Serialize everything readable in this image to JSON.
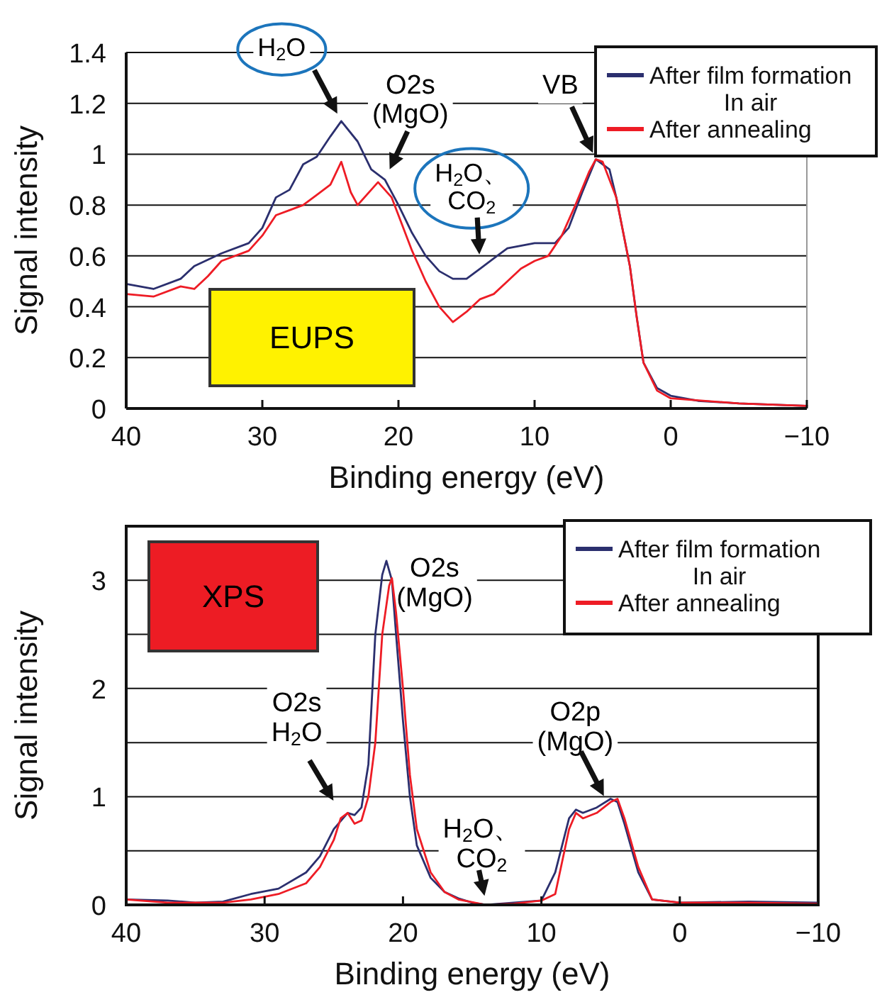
{
  "chart_data": [
    {
      "type": "line",
      "xlabel": "Binding energy (eV)",
      "ylabel": "Signal intensity",
      "xlim": [
        40,
        -10
      ],
      "ylim": [
        0,
        1.4
      ],
      "xticks": [
        40,
        30,
        20,
        10,
        0,
        {
          "value": -10,
          "label": "−10"
        }
      ],
      "yticks": [
        0,
        0.2,
        0.4,
        0.6,
        0.8,
        1,
        1.2,
        1.4
      ],
      "grid": "y",
      "legend": "top right",
      "series": [
        {
          "name": "After film formation\nIn air",
          "color": "#2b2f6e",
          "x": [
            40,
            38,
            36,
            35,
            33,
            31,
            30,
            29,
            28,
            27,
            26,
            25,
            24.2,
            23,
            22,
            21,
            20,
            19,
            18,
            17,
            16,
            15,
            14,
            13,
            12,
            10,
            8.5,
            7.5,
            6.5,
            5.5,
            4.5,
            4,
            3,
            2.5,
            2,
            1,
            0,
            -2,
            -5,
            -10
          ],
          "values": [
            0.49,
            0.47,
            0.51,
            0.56,
            0.61,
            0.65,
            0.71,
            0.83,
            0.86,
            0.96,
            0.99,
            1.07,
            1.13,
            1.05,
            0.94,
            0.9,
            0.8,
            0.69,
            0.6,
            0.54,
            0.51,
            0.51,
            0.55,
            0.59,
            0.63,
            0.65,
            0.65,
            0.71,
            0.85,
            0.98,
            0.94,
            0.83,
            0.56,
            0.36,
            0.18,
            0.08,
            0.05,
            0.03,
            0.02,
            0.01
          ]
        },
        {
          "name": "After annealing",
          "color": "#ee1c25",
          "x": [
            40,
            38,
            36,
            35,
            34,
            33,
            31,
            30,
            29,
            28,
            27,
            26,
            25,
            24.2,
            23.5,
            23,
            22,
            21.5,
            20.5,
            20,
            19,
            18,
            17,
            16,
            15,
            14,
            13,
            12,
            11,
            10,
            9,
            8,
            7,
            6,
            5.5,
            5,
            4,
            3,
            2.5,
            2,
            1,
            0,
            -5,
            -10
          ],
          "values": [
            0.45,
            0.44,
            0.48,
            0.47,
            0.52,
            0.58,
            0.62,
            0.68,
            0.76,
            0.78,
            0.8,
            0.84,
            0.88,
            0.97,
            0.85,
            0.8,
            0.86,
            0.89,
            0.83,
            0.76,
            0.62,
            0.5,
            0.4,
            0.34,
            0.38,
            0.43,
            0.45,
            0.5,
            0.55,
            0.58,
            0.6,
            0.68,
            0.8,
            0.93,
            0.98,
            0.97,
            0.83,
            0.56,
            0.36,
            0.18,
            0.07,
            0.04,
            0.02,
            0.01
          ]
        }
      ],
      "annotations": [
        {
          "text": "H$_{2}$O",
          "x": 24.2,
          "y": 1.13
        },
        {
          "text": "O2s\n(MgO)",
          "x": 21,
          "y": 0.9
        },
        {
          "text": "H$_{2}$O、\nCO$_{2}$",
          "x": 14,
          "y": 0.55
        },
        {
          "text": "VB",
          "x": 5.5,
          "y": 0.98
        },
        "EUPS"
      ]
    },
    {
      "type": "line",
      "xlabel": "Binding energy (eV)",
      "ylabel": "Signal intensity",
      "xlim": [
        40,
        -10
      ],
      "ylim": [
        0,
        3.5
      ],
      "xticks": [
        40,
        30,
        20,
        10,
        0,
        {
          "value": -10,
          "label": "−10"
        }
      ],
      "yticks": [
        0,
        {
          "value": 0.5,
          "label": null
        },
        1,
        {
          "value": 1.5,
          "label": null
        },
        2,
        {
          "value": 2.5,
          "label": null
        },
        3
      ],
      "grid": "y",
      "legend": "top right",
      "series": [
        {
          "name": "After film formation\nIn air",
          "color": "#2b2f6e",
          "x": [
            40,
            37,
            35,
            33,
            31,
            29,
            27,
            26,
            25,
            24,
            23.5,
            23,
            22.5,
            22,
            21.5,
            21.2,
            20.8,
            20.5,
            20,
            19.5,
            19,
            18,
            17,
            16,
            15,
            14,
            12,
            10,
            9,
            8,
            7.5,
            7,
            6,
            5,
            4.5,
            4,
            3,
            2,
            0,
            -5,
            -10
          ],
          "values": [
            0.05,
            0.04,
            0.02,
            0.03,
            0.1,
            0.15,
            0.3,
            0.45,
            0.7,
            0.85,
            0.83,
            0.9,
            1.3,
            2.5,
            3.05,
            3.18,
            3.0,
            2.5,
            1.7,
            1.0,
            0.55,
            0.25,
            0.12,
            0.06,
            0.02,
            0,
            0.02,
            0.04,
            0.3,
            0.8,
            0.88,
            0.85,
            0.9,
            0.98,
            0.95,
            0.75,
            0.3,
            0.05,
            0.02,
            0.03,
            0.02
          ]
        },
        {
          "name": "After annealing",
          "color": "#ee1c25",
          "x": [
            40,
            37,
            35,
            33,
            31,
            29,
            27,
            26,
            25,
            24.5,
            24,
            23.5,
            23,
            22.5,
            22,
            21.5,
            21,
            20.8,
            20.5,
            20,
            19.5,
            19,
            18,
            17,
            16,
            14,
            12,
            10,
            9,
            8,
            7.5,
            7,
            6,
            5,
            4.5,
            4,
            3,
            2,
            0,
            -5,
            -10
          ],
          "values": [
            0.05,
            0.02,
            0.02,
            0.02,
            0.05,
            0.1,
            0.2,
            0.35,
            0.6,
            0.8,
            0.85,
            0.75,
            0.78,
            1.0,
            1.5,
            2.5,
            2.95,
            3.02,
            2.7,
            2.0,
            1.2,
            0.7,
            0.3,
            0.12,
            0.05,
            0,
            0.01,
            0.04,
            0.1,
            0.7,
            0.85,
            0.8,
            0.85,
            0.95,
            0.98,
            0.8,
            0.35,
            0.05,
            0.02,
            0.02,
            0.01
          ]
        }
      ],
      "annotations": [
        "XPS",
        {
          "text": "O2s\n(MgO)",
          "x": 21.2,
          "y": 3.18
        },
        {
          "text": "O2s\nH$_{2}$O",
          "x": 24.5,
          "y": 0.85
        },
        {
          "text": "H$_{2}$O、\nCO$_{2}$",
          "x": 14,
          "y": 0.02
        },
        {
          "text": "O2p\n(MgO)",
          "x": 5.3,
          "y": 0.96
        }
      ]
    }
  ]
}
